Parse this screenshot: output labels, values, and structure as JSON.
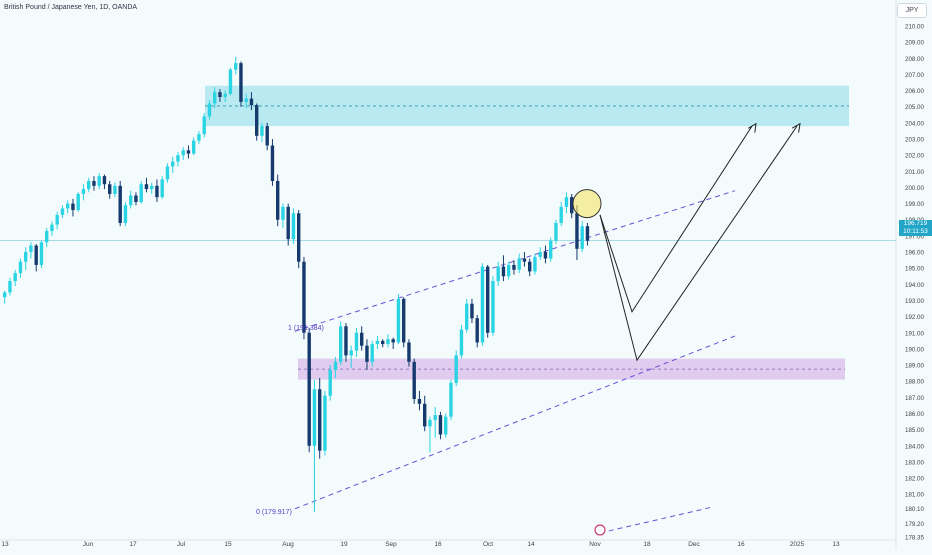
{
  "header": {
    "title": "British Pound / Japanese Yen, 1D, OANDA",
    "currency": "JPY"
  },
  "price_tag": {
    "price": "196.719",
    "countdown": "10:11:53"
  },
  "annotations": {
    "fib_high": "1 (191.384)",
    "fib_low": "0 (179.917)"
  },
  "colors": {
    "background": "#f3fbfc",
    "bull": "#2ad4e3",
    "bear": "#163a6e",
    "resistance_zone": "#b3e7f0",
    "support_zone": "#ddc6ec",
    "channel": "#6a4fd6",
    "projection": "#222222",
    "highlight": "#f4e35a"
  },
  "chart_data": {
    "type": "candlestick",
    "title": "British Pound / Japanese Yen, 1D, OANDA",
    "ylim": [
      177.8,
      210.8
    ],
    "y_ticks": [
      178.35,
      179.2,
      180.1,
      181,
      182,
      183,
      184,
      185,
      186,
      187,
      188,
      189,
      190,
      191,
      192,
      193,
      194,
      195,
      196,
      197,
      198,
      199,
      200,
      201,
      202,
      203,
      204,
      205,
      206,
      207,
      208,
      209,
      210
    ],
    "y_tick_labels": [
      "178.35",
      "179.20",
      "180.10",
      "181.00",
      "182.00",
      "183.00",
      "184.00",
      "185.00",
      "186.00",
      "187.00",
      "188.00",
      "189.00",
      "190.00",
      "191.00",
      "192.00",
      "193.00",
      "194.00",
      "195.00",
      "196.00",
      "197.00",
      "198.00",
      "199.00",
      "200.00",
      "201.00",
      "202.00",
      "203.00",
      "204.00",
      "205.00",
      "206.00",
      "207.00",
      "208.00",
      "209.00",
      "210.00"
    ],
    "x_ticks": [
      "13",
      "Jun",
      "17",
      "Jul",
      "15",
      "Aug",
      "19",
      "Sep",
      "16",
      "Oct",
      "14",
      "Nov",
      "18",
      "Dec",
      "16",
      "2025",
      "13"
    ],
    "last_price": 196.719,
    "candles": [
      [
        193.2,
        193.6,
        192.8,
        193.5
      ],
      [
        193.5,
        194.4,
        193.3,
        194.2
      ],
      [
        194.2,
        194.9,
        193.9,
        194.7
      ],
      [
        194.7,
        195.6,
        194.4,
        195.4
      ],
      [
        195.4,
        196.3,
        194.9,
        196.0
      ],
      [
        196.0,
        196.6,
        195.6,
        196.4
      ],
      [
        196.4,
        196.5,
        194.8,
        195.2
      ],
      [
        195.2,
        196.7,
        195.0,
        196.6
      ],
      [
        196.6,
        197.5,
        196.3,
        197.3
      ],
      [
        197.3,
        197.9,
        197.0,
        197.7
      ],
      [
        197.7,
        198.5,
        197.4,
        198.3
      ],
      [
        198.3,
        198.9,
        198.1,
        198.7
      ],
      [
        198.7,
        199.2,
        198.4,
        199.0
      ],
      [
        199.0,
        199.3,
        198.2,
        198.6
      ],
      [
        198.6,
        199.7,
        198.5,
        199.6
      ],
      [
        199.6,
        200.2,
        199.2,
        199.9
      ],
      [
        199.9,
        200.6,
        199.7,
        200.4
      ],
      [
        200.4,
        200.7,
        199.8,
        200.1
      ],
      [
        200.1,
        200.9,
        199.9,
        200.7
      ],
      [
        200.7,
        200.8,
        199.9,
        200.2
      ],
      [
        200.2,
        200.4,
        199.3,
        199.6
      ],
      [
        199.6,
        200.3,
        199.4,
        200.1
      ],
      [
        200.1,
        200.4,
        197.6,
        197.8
      ],
      [
        197.8,
        199.1,
        197.6,
        198.9
      ],
      [
        198.9,
        199.8,
        198.7,
        199.5
      ],
      [
        199.5,
        199.7,
        198.9,
        199.1
      ],
      [
        199.1,
        200.4,
        199.0,
        200.2
      ],
      [
        200.2,
        200.6,
        199.7,
        199.9
      ],
      [
        199.9,
        200.3,
        199.6,
        200.1
      ],
      [
        200.1,
        200.5,
        199.1,
        199.4
      ],
      [
        199.4,
        200.7,
        199.3,
        200.5
      ],
      [
        200.5,
        201.5,
        200.3,
        201.3
      ],
      [
        201.3,
        201.9,
        200.9,
        201.6
      ],
      [
        201.6,
        202.2,
        201.3,
        202.0
      ],
      [
        202.0,
        202.5,
        201.7,
        202.3
      ],
      [
        202.3,
        202.6,
        201.8,
        202.1
      ],
      [
        202.1,
        203.1,
        202.0,
        202.9
      ],
      [
        202.9,
        203.5,
        202.7,
        203.3
      ],
      [
        203.3,
        204.6,
        203.1,
        204.4
      ],
      [
        204.4,
        205.4,
        204.2,
        205.2
      ],
      [
        205.2,
        206.2,
        204.9,
        205.9
      ],
      [
        205.9,
        206.1,
        205.3,
        205.6
      ],
      [
        205.6,
        206.0,
        205.3,
        205.8
      ],
      [
        205.8,
        207.4,
        205.7,
        207.3
      ],
      [
        207.3,
        208.1,
        207.0,
        207.7
      ],
      [
        207.7,
        207.8,
        205.0,
        205.3
      ],
      [
        205.3,
        205.8,
        204.9,
        205.5
      ],
      [
        205.5,
        205.9,
        204.8,
        205.1
      ],
      [
        205.1,
        205.2,
        202.9,
        203.2
      ],
      [
        203.2,
        204.0,
        202.8,
        203.8
      ],
      [
        203.8,
        204.0,
        202.3,
        202.6
      ],
      [
        202.6,
        203.0,
        200.1,
        200.4
      ],
      [
        200.4,
        200.8,
        197.6,
        198.0
      ],
      [
        198.0,
        199.0,
        197.5,
        198.8
      ],
      [
        198.8,
        199.0,
        196.4,
        196.8
      ],
      [
        196.8,
        198.7,
        196.5,
        198.4
      ],
      [
        198.4,
        198.6,
        195.0,
        195.4
      ],
      [
        195.4,
        195.7,
        190.6,
        191.0
      ],
      [
        191.0,
        191.3,
        183.6,
        184.0
      ],
      [
        184.0,
        188.1,
        179.9,
        187.5
      ],
      [
        187.5,
        188.2,
        183.2,
        183.7
      ],
      [
        183.7,
        187.4,
        183.4,
        187.1
      ],
      [
        187.1,
        189.0,
        186.8,
        188.7
      ],
      [
        188.7,
        189.5,
        188.2,
        189.2
      ],
      [
        189.2,
        191.7,
        189.0,
        191.4
      ],
      [
        191.4,
        191.6,
        189.2,
        189.6
      ],
      [
        189.6,
        190.2,
        188.8,
        189.9
      ],
      [
        189.9,
        191.3,
        189.5,
        191.0
      ],
      [
        191.0,
        191.4,
        189.9,
        190.2
      ],
      [
        190.2,
        190.6,
        188.7,
        189.2
      ],
      [
        189.2,
        190.5,
        188.9,
        190.3
      ],
      [
        190.3,
        190.8,
        190.0,
        190.5
      ],
      [
        190.5,
        190.6,
        190.1,
        190.3
      ],
      [
        190.3,
        190.9,
        190.1,
        190.6
      ],
      [
        190.6,
        190.7,
        190.0,
        190.4
      ],
      [
        190.4,
        193.4,
        190.3,
        193.1
      ],
      [
        193.1,
        193.2,
        190.1,
        190.4
      ],
      [
        190.4,
        190.6,
        188.9,
        189.2
      ],
      [
        189.2,
        189.4,
        186.6,
        186.9
      ],
      [
        186.9,
        187.4,
        186.2,
        186.6
      ],
      [
        186.6,
        187.1,
        184.9,
        185.2
      ],
      [
        185.2,
        185.8,
        183.6,
        185.6
      ],
      [
        185.6,
        186.4,
        184.5,
        185.9
      ],
      [
        185.9,
        186.1,
        184.4,
        184.7
      ],
      [
        184.7,
        186.0,
        184.5,
        185.8
      ],
      [
        185.8,
        188.1,
        185.6,
        187.9
      ],
      [
        187.9,
        189.9,
        187.7,
        189.6
      ],
      [
        189.6,
        191.5,
        189.4,
        191.2
      ],
      [
        191.2,
        193.1,
        191.0,
        192.8
      ],
      [
        192.8,
        193.1,
        191.6,
        191.9
      ],
      [
        191.9,
        192.1,
        190.1,
        190.4
      ],
      [
        190.4,
        195.3,
        190.2,
        195.1
      ],
      [
        195.1,
        195.2,
        190.7,
        191.0
      ],
      [
        191.0,
        194.5,
        190.8,
        194.2
      ],
      [
        194.2,
        195.4,
        193.9,
        195.1
      ],
      [
        195.1,
        195.8,
        194.2,
        194.5
      ],
      [
        194.5,
        195.4,
        194.3,
        195.2
      ],
      [
        195.2,
        195.5,
        194.6,
        194.9
      ],
      [
        194.9,
        195.9,
        194.7,
        195.6
      ],
      [
        195.6,
        196.0,
        195.1,
        195.4
      ],
      [
        195.4,
        195.6,
        194.5,
        194.8
      ],
      [
        194.8,
        195.9,
        194.6,
        195.7
      ],
      [
        195.7,
        196.3,
        195.5,
        196.0
      ],
      [
        196.0,
        196.4,
        195.3,
        195.6
      ],
      [
        195.6,
        196.9,
        195.4,
        196.7
      ],
      [
        196.7,
        198.0,
        196.5,
        197.8
      ],
      [
        197.8,
        199.1,
        197.6,
        198.8
      ],
      [
        198.8,
        199.7,
        198.4,
        199.4
      ],
      [
        199.4,
        199.6,
        198.1,
        198.4
      ],
      [
        198.4,
        198.9,
        195.5,
        196.2
      ],
      [
        196.2,
        197.9,
        196.0,
        197.6
      ],
      [
        197.6,
        197.8,
        196.4,
        196.7
      ]
    ],
    "zones": [
      {
        "name": "resistance",
        "from": 203.8,
        "to": 206.3,
        "mid": 205.05
      },
      {
        "name": "support",
        "from": 188.1,
        "to": 189.4,
        "mid": 188.75
      }
    ],
    "channel": {
      "upper_from": 191.384,
      "lower_from": 179.917
    }
  }
}
